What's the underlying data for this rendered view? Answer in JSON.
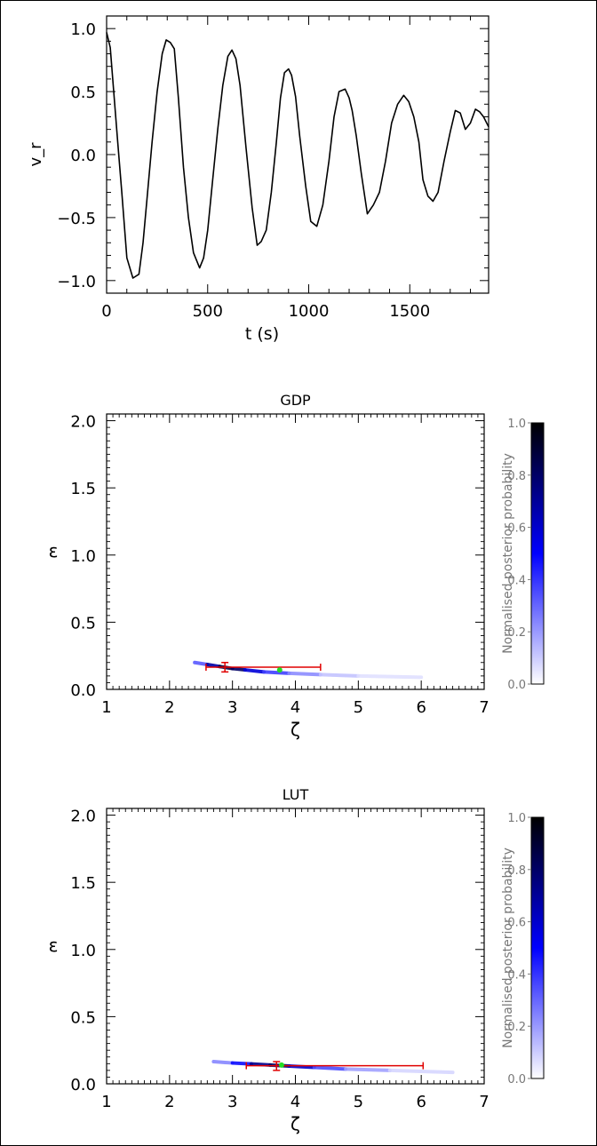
{
  "chart_data": [
    {
      "type": "line",
      "title": "",
      "xlabel": "t (s)",
      "ylabel": "v_r",
      "xlim": [
        0,
        1890
      ],
      "ylim": [
        -1.1,
        1.1
      ],
      "xticks": [
        "0",
        "500",
        "1000",
        "1500"
      ],
      "yticks": [
        "1.0",
        "0.5",
        "0.0",
        "−0.5",
        "−1.0"
      ],
      "grid": false,
      "legend": "none",
      "series": [
        {
          "x": [
            0,
            18,
            35,
            55,
            75,
            100,
            130,
            160,
            180,
            200,
            225,
            250,
            275,
            295,
            315,
            335,
            355,
            380,
            405,
            430,
            460,
            480,
            500,
            525,
            550,
            575,
            600,
            620,
            640,
            660,
            690,
            720,
            745,
            765,
            790,
            815,
            840,
            860,
            880,
            900,
            915,
            935,
            955,
            985,
            1010,
            1040,
            1070,
            1100,
            1125,
            1150,
            1180,
            1200,
            1215,
            1235,
            1260,
            1290,
            1320,
            1350,
            1380,
            1410,
            1440,
            1470,
            1495,
            1520,
            1545,
            1565,
            1590,
            1615,
            1640,
            1670,
            1700,
            1725,
            1750,
            1775,
            1800,
            1825,
            1845,
            1865,
            1890
          ],
          "y": [
            0.97,
            0.85,
            0.5,
            0.1,
            -0.3,
            -0.82,
            -0.98,
            -0.95,
            -0.7,
            -0.35,
            0.1,
            0.5,
            0.8,
            0.91,
            0.89,
            0.84,
            0.45,
            -0.1,
            -0.5,
            -0.78,
            -0.9,
            -0.82,
            -0.6,
            -0.2,
            0.2,
            0.55,
            0.78,
            0.83,
            0.76,
            0.55,
            0.05,
            -0.42,
            -0.72,
            -0.69,
            -0.6,
            -0.3,
            0.1,
            0.45,
            0.65,
            0.68,
            0.63,
            0.46,
            0.15,
            -0.25,
            -0.53,
            -0.57,
            -0.4,
            -0.05,
            0.3,
            0.5,
            0.52,
            0.45,
            0.35,
            0.15,
            -0.15,
            -0.47,
            -0.4,
            -0.3,
            -0.05,
            0.25,
            0.4,
            0.47,
            0.42,
            0.3,
            0.1,
            -0.2,
            -0.33,
            -0.37,
            -0.3,
            -0.05,
            0.18,
            0.35,
            0.33,
            0.2,
            0.25,
            0.36,
            0.34,
            0.3,
            0.22
          ]
        }
      ]
    },
    {
      "type": "heatmap",
      "title": "GDP",
      "xlabel": "ζ",
      "ylabel": "ε",
      "xlim": [
        1,
        7
      ],
      "ylim": [
        0,
        2.05
      ],
      "xticks": [
        "1",
        "2",
        "3",
        "4",
        "5",
        "6",
        "7"
      ],
      "yticks": [
        "2.0",
        "1.5",
        "1.0",
        "0.5",
        "0.0"
      ],
      "colorbar": {
        "label": "Normalised posterior probability",
        "ticks": [
          "1.0",
          "0.8",
          "0.6",
          "0.4",
          "0.2",
          "0.0"
        ],
        "range": [
          0,
          1
        ],
        "colors": [
          "#ffffff",
          "#0000ff",
          "#000000"
        ]
      },
      "posterior_ridge": [
        {
          "x": 2.4,
          "y": 0.2,
          "p": 0.15
        },
        {
          "x": 2.6,
          "y": 0.185,
          "p": 0.5
        },
        {
          "x": 2.8,
          "y": 0.17,
          "p": 0.85
        },
        {
          "x": 3.0,
          "y": 0.155,
          "p": 0.9
        },
        {
          "x": 3.2,
          "y": 0.145,
          "p": 0.7
        },
        {
          "x": 3.5,
          "y": 0.13,
          "p": 0.45
        },
        {
          "x": 3.9,
          "y": 0.12,
          "p": 0.3
        },
        {
          "x": 4.4,
          "y": 0.11,
          "p": 0.15
        },
        {
          "x": 5.0,
          "y": 0.1,
          "p": 0.08
        },
        {
          "x": 6.0,
          "y": 0.09,
          "p": 0.03
        }
      ],
      "estimate": {
        "x": 2.88,
        "y": 0.165,
        "x_err": [
          2.58,
          4.4
        ],
        "y_err": [
          0.13,
          0.2
        ]
      },
      "true_value": {
        "x": 3.75,
        "y": 0.145
      }
    },
    {
      "type": "heatmap",
      "title": "LUT",
      "xlabel": "ζ",
      "ylabel": "ε",
      "xlim": [
        1,
        7
      ],
      "ylim": [
        0,
        2.05
      ],
      "xticks": [
        "1",
        "2",
        "3",
        "4",
        "5",
        "6",
        "7"
      ],
      "yticks": [
        "2.0",
        "1.5",
        "1.0",
        "0.5",
        "0.0"
      ],
      "colorbar": {
        "label": "Normalised posterior probability",
        "ticks": [
          "1.0",
          "0.8",
          "0.6",
          "0.4",
          "0.2",
          "0.0"
        ],
        "range": [
          0,
          1
        ],
        "colors": [
          "#ffffff",
          "#0000ff",
          "#000000"
        ]
      },
      "posterior_ridge": [
        {
          "x": 2.7,
          "y": 0.165,
          "p": 0.12
        },
        {
          "x": 3.0,
          "y": 0.155,
          "p": 0.35
        },
        {
          "x": 3.3,
          "y": 0.148,
          "p": 0.6
        },
        {
          "x": 3.6,
          "y": 0.14,
          "p": 0.85
        },
        {
          "x": 3.9,
          "y": 0.132,
          "p": 0.75
        },
        {
          "x": 4.3,
          "y": 0.122,
          "p": 0.45
        },
        {
          "x": 4.8,
          "y": 0.11,
          "p": 0.25
        },
        {
          "x": 5.5,
          "y": 0.1,
          "p": 0.12
        },
        {
          "x": 6.5,
          "y": 0.085,
          "p": 0.04
        }
      ],
      "estimate": {
        "x": 3.7,
        "y": 0.135,
        "x_err": [
          3.22,
          6.03
        ],
        "y_err": [
          0.1,
          0.165
        ]
      },
      "true_value": {
        "x": 3.78,
        "y": 0.14
      }
    }
  ]
}
